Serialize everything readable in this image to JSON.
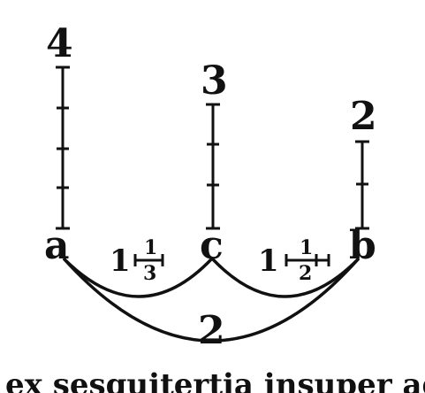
{
  "diagram": {
    "bars": {
      "left_count": "4",
      "middle_count": "3",
      "right_count": "2"
    },
    "points": {
      "left": "a",
      "middle": "c",
      "right": "b"
    },
    "ratios": {
      "a_c_whole": "1",
      "a_c_num": "1",
      "a_c_den": "3",
      "c_b_whole": "1",
      "c_b_num": "1",
      "c_b_den": "2",
      "a_b": "2"
    },
    "caption": "ex sesquitertia insuper ad e"
  }
}
